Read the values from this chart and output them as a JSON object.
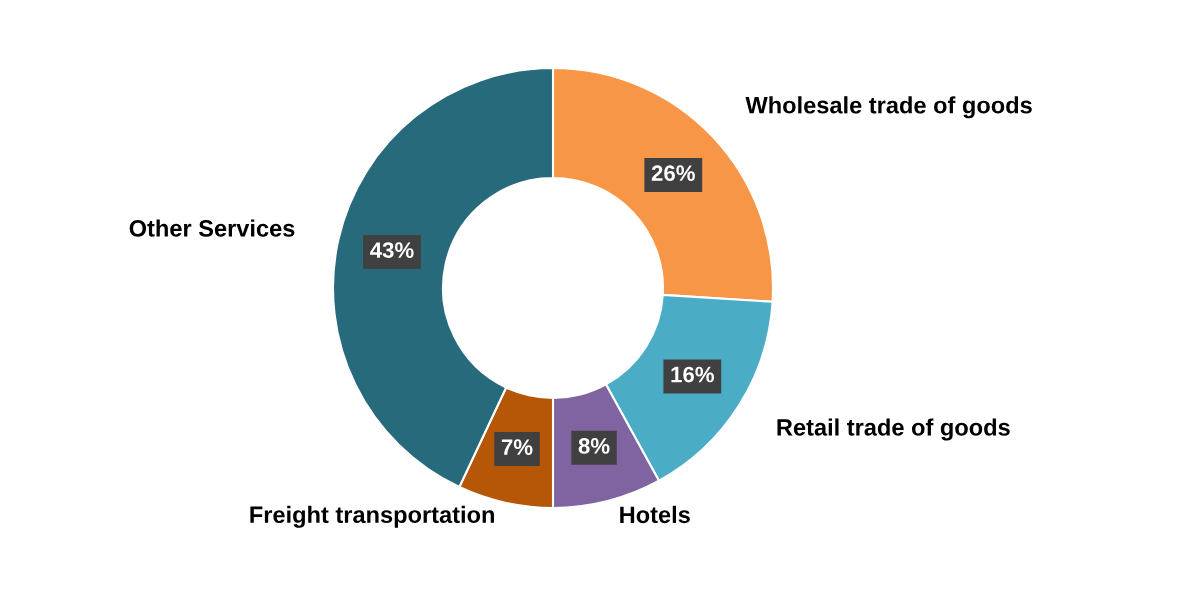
{
  "chart_data": {
    "type": "donut",
    "categories": [
      "Wholesale trade of goods",
      "Retail trade of goods",
      "Hotels",
      "Freight transportation",
      "Other Services"
    ],
    "values": [
      26,
      16,
      8,
      7,
      43
    ],
    "colors": [
      "#f79646",
      "#4bacc6",
      "#8064a2",
      "#b65708",
      "#276a7c"
    ],
    "value_labels": [
      "26%",
      "16%",
      "8%",
      "7%",
      "43%"
    ],
    "legend": false
  }
}
